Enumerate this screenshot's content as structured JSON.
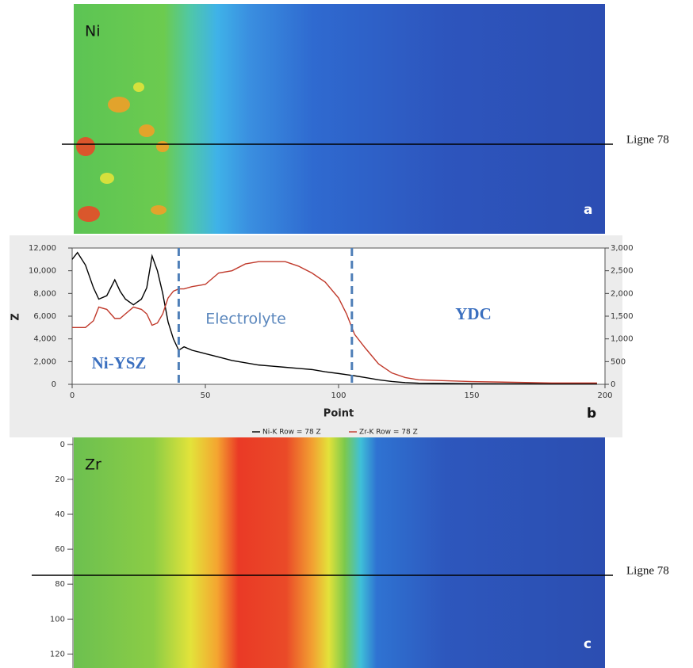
{
  "chart_data": [
    {
      "type": "heatmap",
      "title": "Ni",
      "panel": "a",
      "annotation": "Ligne 78"
    },
    {
      "type": "line",
      "panel": "b",
      "xlabel": "Point",
      "ylabel": "Z",
      "x": [
        0,
        2,
        5,
        8,
        10,
        13,
        16,
        18,
        20,
        23,
        26,
        28,
        30,
        32,
        34,
        36,
        38,
        40,
        42,
        45,
        50,
        55,
        60,
        65,
        70,
        75,
        80,
        85,
        90,
        95,
        100,
        103,
        106,
        110,
        115,
        120,
        125,
        130,
        140,
        150,
        160,
        170,
        180,
        190,
        197
      ],
      "series": [
        {
          "name": "Ni-K Row = 78 Z",
          "color": "#000000",
          "values": [
            11000,
            11600,
            10500,
            8500,
            7500,
            7800,
            9200,
            8200,
            7500,
            7000,
            7500,
            8500,
            11300,
            10000,
            8000,
            5500,
            4000,
            3000,
            3300,
            3000,
            2700,
            2400,
            2100,
            1900,
            1700,
            1600,
            1500,
            1400,
            1300,
            1100,
            950,
            850,
            750,
            600,
            400,
            250,
            150,
            100,
            80,
            60,
            50,
            50,
            40,
            40,
            40
          ]
        },
        {
          "name": "Zr-K Row = 78 Z",
          "color": "#c0392b",
          "axis": "y2",
          "values": [
            1250,
            1250,
            1250,
            1400,
            1700,
            1650,
            1450,
            1450,
            1550,
            1700,
            1650,
            1550,
            1300,
            1350,
            1550,
            1900,
            2050,
            2100,
            2100,
            2150,
            2200,
            2450,
            2500,
            2650,
            2700,
            2700,
            2700,
            2600,
            2450,
            2250,
            1900,
            1550,
            1100,
            800,
            450,
            250,
            150,
            100,
            80,
            60,
            50,
            40,
            30,
            30,
            30
          ]
        }
      ],
      "xlim": [
        0,
        200
      ],
      "xticks": [
        0,
        50,
        100,
        150,
        200
      ],
      "ylim": [
        0,
        12000
      ],
      "yticks": [
        0,
        {
          "value": 2000,
          "label": "2,000"
        },
        {
          "value": 4000,
          "label": "4,000"
        },
        {
          "value": 6000,
          "label": "6,000"
        },
        {
          "value": 8000,
          "label": "8,000"
        },
        {
          "value": 10000,
          "label": "10,000"
        },
        {
          "value": 12000,
          "label": "12,000"
        }
      ],
      "y2lim": [
        0,
        3000
      ],
      "y2ticks": [
        0,
        500,
        {
          "value": 1000,
          "label": "1,000"
        },
        {
          "value": 1500,
          "label": "1,500"
        },
        {
          "value": 2000,
          "label": "2,000"
        },
        {
          "value": 2500,
          "label": "2,500"
        },
        {
          "value": 3000,
          "label": "3,000"
        }
      ],
      "boundaries": [
        40,
        105
      ],
      "annotations": [
        "Ni-YSZ",
        "Electrolyte",
        "YDC"
      ]
    },
    {
      "type": "heatmap",
      "title": "Zr",
      "panel": "c",
      "annotation": "Ligne 78",
      "ylim": [
        -4,
        128
      ],
      "yticks": [
        0,
        20,
        40,
        60,
        80,
        100,
        120
      ]
    }
  ]
}
